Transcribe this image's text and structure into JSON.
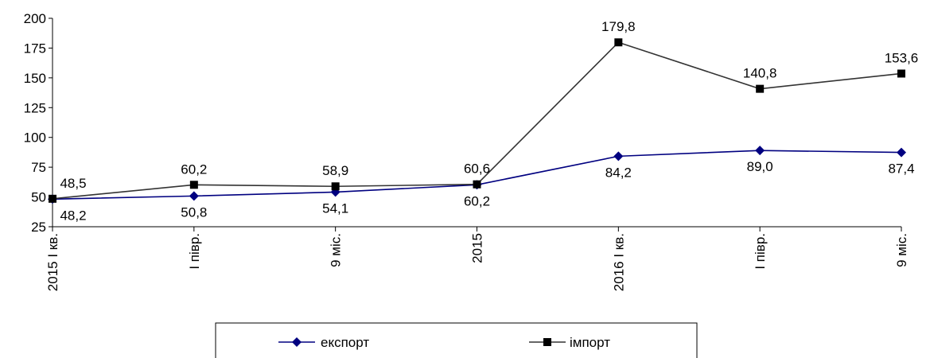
{
  "chart_data": {
    "type": "line",
    "title": "",
    "xlabel": "",
    "ylabel": "",
    "categories": [
      "2015 I кв.",
      "I півр.",
      "9 міс.",
      "2015",
      "2016 I кв.",
      "I півр.",
      "9 міс."
    ],
    "y_ticks": [
      "25",
      "50",
      "75",
      "100",
      "125",
      "150",
      "175",
      "200"
    ],
    "ylim": [
      25,
      200
    ],
    "grid": false,
    "legend_position": "bottom",
    "series": [
      {
        "name": "експорт",
        "values": [
          48.2,
          50.8,
          54.1,
          60.2,
          84.2,
          89.0,
          87.4
        ],
        "labels": [
          "48,2",
          "50,8",
          "54,1",
          "60,2",
          "84,2",
          "89,0",
          "87,4"
        ],
        "color": "#000080",
        "marker": "diamond"
      },
      {
        "name": "імпорт",
        "values": [
          48.5,
          60.2,
          58.9,
          60.6,
          179.8,
          140.8,
          153.6
        ],
        "labels": [
          "48,5",
          "60,2",
          "58,9",
          "60,6",
          "179,8",
          "140,8",
          "153,6"
        ],
        "color": "#333333",
        "marker": "square"
      }
    ]
  }
}
